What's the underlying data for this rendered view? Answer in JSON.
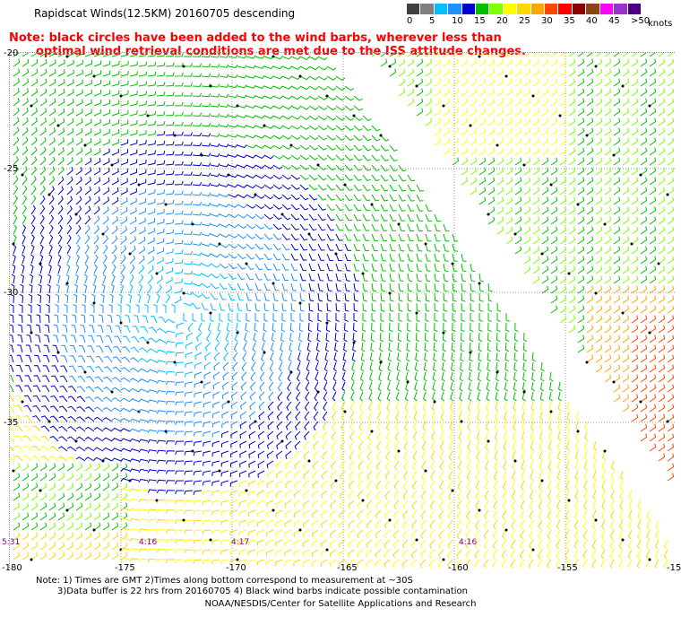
{
  "title": "Rapidscat Winds(12.5KM) 20160705 descending",
  "note_lines": [
    "Note: black circles have been added to the wind barbs, wherever less than",
    "optimal wind retrieval conditions are met due to the ISS attitude changes."
  ],
  "legend": {
    "colors": [
      "#404040",
      "#808080",
      "#00bfff",
      "#1e90ff",
      "#0000cd",
      "#00c000",
      "#7fff00",
      "#ffff00",
      "#ffd700",
      "#ffa500",
      "#ff4500",
      "#ff0000",
      "#8b0000",
      "#8b4513",
      "#ff00ff",
      "#9932cc",
      "#4b0082"
    ],
    "labels": [
      "0",
      "5",
      "10",
      "15",
      "20",
      "25",
      "30",
      "35",
      "40",
      "45",
      ">50"
    ],
    "unit": "knots"
  },
  "lat_labels": [
    "-20",
    "-25",
    "-30",
    "-35"
  ],
  "lon_labels": [
    "-180",
    "-175",
    "-170",
    "-165",
    "-160",
    "-155",
    "-15"
  ],
  "time_labels": [
    "5:31",
    "4:16",
    "4:17",
    "4:16"
  ],
  "footnotes": [
    "Note: 1) Times are GMT 2)Times along bottom correspond to measurement at ~30S",
    "3)Data buffer is 22 hrs from 20160705 4) Black wind barbs indicate possible contamination"
  ],
  "credit": "NOAA/NESDIS/Center for Satellite Applications and Research"
}
